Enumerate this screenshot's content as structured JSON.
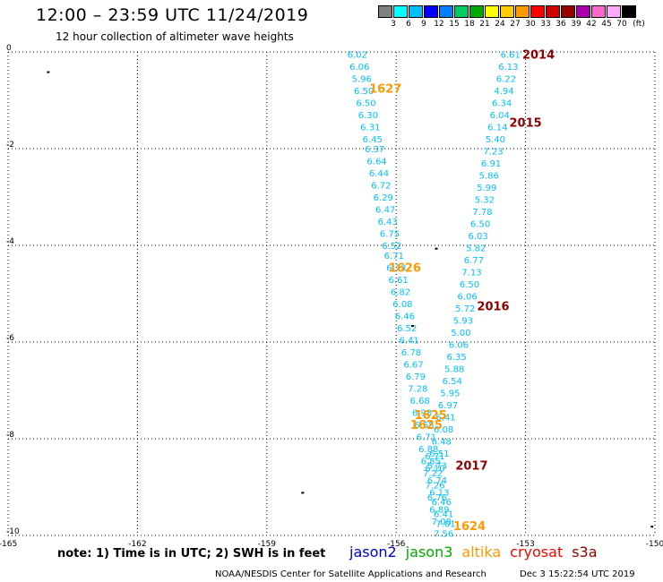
{
  "header": {
    "title": "12:00 – 23:59 UTC 11/24/2019",
    "subtitle": "12 hour collection of altimeter wave heights"
  },
  "legend": {
    "unit": "(ft)",
    "colors": [
      "#808080",
      "#00ffff",
      "#00bfff",
      "#0000ff",
      "#007fff",
      "#00cc66",
      "#00aa00",
      "#ffff00",
      "#ffcc00",
      "#ff9900",
      "#ff0000",
      "#cc0000",
      "#990000",
      "#aa00aa",
      "#ff66cc",
      "#ffaaff",
      "#000000"
    ],
    "labels": [
      "3",
      "6",
      "9",
      "12",
      "15",
      "18",
      "21",
      "24",
      "27",
      "30",
      "33",
      "36",
      "39",
      "42",
      "45",
      "70"
    ]
  },
  "chart_data": {
    "type": "scatter",
    "xlim": [
      -165,
      -150
    ],
    "ylim": [
      -10,
      0
    ],
    "x_ticks": [
      "-165",
      "-162",
      "-159",
      "-156",
      "-153",
      "-150"
    ],
    "y_ticks": [
      "0",
      "-2",
      "-4",
      "-6",
      "-8",
      "-10"
    ],
    "grid": true,
    "series": [
      {
        "color": "#00bfff",
        "values": [
          [
            -156.9,
            -0.05,
            "6.02"
          ],
          [
            -156.85,
            -0.3,
            "6.06"
          ],
          [
            -156.8,
            -0.55,
            "5.96"
          ],
          [
            -156.75,
            -0.8,
            "6.50"
          ],
          [
            -156.7,
            -1.05,
            "6.50"
          ],
          [
            -156.65,
            -1.3,
            "6.30"
          ],
          [
            -156.6,
            -1.55,
            "6.31"
          ],
          [
            -156.55,
            -1.8,
            "6.45"
          ],
          [
            -156.5,
            -2.0,
            "6.37"
          ],
          [
            -156.45,
            -2.25,
            "6.64"
          ],
          [
            -156.4,
            -2.5,
            "6.44"
          ],
          [
            -156.35,
            -2.75,
            "6.72"
          ],
          [
            -156.3,
            -3.0,
            "6.29"
          ],
          [
            -156.25,
            -3.25,
            "6.47"
          ],
          [
            -156.2,
            -3.5,
            "6.43"
          ],
          [
            -156.15,
            -3.75,
            "6.75"
          ],
          [
            -156.1,
            -4.0,
            "6.52"
          ],
          [
            -156.05,
            -4.2,
            "6.71"
          ],
          [
            -156.0,
            -4.45,
            "6.73"
          ],
          [
            -155.95,
            -4.7,
            "6.61"
          ],
          [
            -155.9,
            -4.95,
            "6.82"
          ],
          [
            -155.85,
            -5.2,
            "6.08"
          ],
          [
            -155.8,
            -5.45,
            "6.46"
          ],
          [
            -155.75,
            -5.7,
            "6.52"
          ],
          [
            -155.7,
            -5.95,
            "6.41"
          ],
          [
            -155.65,
            -6.2,
            "6.78"
          ],
          [
            -155.6,
            -6.45,
            "6.67"
          ],
          [
            -155.55,
            -6.7,
            "6.79"
          ],
          [
            -155.5,
            -6.95,
            "7.28"
          ],
          [
            -155.45,
            -7.2,
            "6.68"
          ],
          [
            -155.4,
            -7.45,
            "6.98"
          ],
          [
            -155.35,
            -7.7,
            "6.55"
          ],
          [
            -155.3,
            -7.95,
            "6.71"
          ],
          [
            -155.25,
            -8.2,
            "6.88"
          ],
          [
            -155.2,
            -8.45,
            "6.85"
          ],
          [
            -155.15,
            -8.7,
            "7.22"
          ],
          [
            -155.1,
            -8.95,
            "7.26"
          ],
          [
            -155.05,
            -9.2,
            "6.76"
          ],
          [
            -155.0,
            -9.45,
            "6.89"
          ],
          [
            -154.95,
            -9.7,
            "7.08"
          ],
          [
            -154.9,
            -9.95,
            "7.56"
          ],
          [
            -154.85,
            -9.75,
            "7.01"
          ],
          [
            -154.9,
            -9.55,
            "6.41"
          ],
          [
            -154.95,
            -9.3,
            "6.46"
          ],
          [
            -155.0,
            -9.1,
            "6.13"
          ],
          [
            -155.05,
            -8.85,
            "6.74"
          ],
          [
            -155.1,
            -8.6,
            "6.10"
          ],
          [
            -155.1,
            -8.35,
            "6.71"
          ]
        ]
      },
      {
        "color": "#00bfff",
        "values": [
          [
            -153.35,
            -0.05,
            "6.61"
          ],
          [
            -153.4,
            -0.3,
            "6.13"
          ],
          [
            -153.45,
            -0.55,
            "6.22"
          ],
          [
            -153.5,
            -0.8,
            "4.94"
          ],
          [
            -153.55,
            -1.05,
            "6.34"
          ],
          [
            -153.6,
            -1.3,
            "6.04"
          ],
          [
            -153.65,
            -1.55,
            "6.14"
          ],
          [
            -153.7,
            -1.8,
            "5.40"
          ],
          [
            -153.75,
            -2.05,
            "7.23"
          ],
          [
            -153.8,
            -2.3,
            "6.91"
          ],
          [
            -153.85,
            -2.55,
            "5.86"
          ],
          [
            -153.9,
            -2.8,
            "5.99"
          ],
          [
            -153.95,
            -3.05,
            "5.32"
          ],
          [
            -154.0,
            -3.3,
            "7.78"
          ],
          [
            -154.05,
            -3.55,
            "6.50"
          ],
          [
            -154.1,
            -3.8,
            "6.03"
          ],
          [
            -154.15,
            -4.05,
            "5.82"
          ],
          [
            -154.2,
            -4.3,
            "6.77"
          ],
          [
            -154.25,
            -4.55,
            "7.13"
          ],
          [
            -154.3,
            -4.8,
            "6.50"
          ],
          [
            -154.35,
            -5.05,
            "6.06"
          ],
          [
            -154.4,
            -5.3,
            "5.72"
          ],
          [
            -154.45,
            -5.55,
            "5.93"
          ],
          [
            -154.5,
            -5.8,
            "5.00"
          ],
          [
            -154.55,
            -6.05,
            "6.06"
          ],
          [
            -154.6,
            -6.3,
            "6.35"
          ],
          [
            -154.65,
            -6.55,
            "5.88"
          ],
          [
            -154.7,
            -6.8,
            "6.54"
          ],
          [
            -154.75,
            -7.05,
            "5.95"
          ],
          [
            -154.8,
            -7.3,
            "6.97"
          ],
          [
            -154.85,
            -7.55,
            "6.41"
          ],
          [
            -154.9,
            -7.8,
            "6.08"
          ],
          [
            -154.95,
            -8.05,
            "6.48"
          ],
          [
            -155.0,
            -8.3,
            "6.51"
          ],
          [
            -155.05,
            -8.55,
            "5.73"
          ]
        ]
      }
    ],
    "annotations": [
      {
        "text": "2014",
        "x": -152.7,
        "y": -0.05,
        "color": "#8b0000"
      },
      {
        "text": "2015",
        "x": -153.0,
        "y": -1.45,
        "color": "#8b0000"
      },
      {
        "text": "2016",
        "x": -153.75,
        "y": -5.25,
        "color": "#8b0000"
      },
      {
        "text": "2017",
        "x": -154.25,
        "y": -8.55,
        "color": "#8b0000"
      },
      {
        "text": "1627",
        "x": -156.25,
        "y": -0.75,
        "color": "#ff9900"
      },
      {
        "text": "1626",
        "x": -155.8,
        "y": -4.45,
        "color": "#ff9900"
      },
      {
        "text": "1625",
        "x": -155.2,
        "y": -7.5,
        "color": "#ff9900"
      },
      {
        "text": "1625",
        "x": -155.3,
        "y": -7.7,
        "color": "#ff9900"
      },
      {
        "text": "1624",
        "x": -154.3,
        "y": -9.8,
        "color": "#ff9900"
      }
    ]
  },
  "footer": {
    "note": "note:  1) Time is in UTC;  2) SWH is in feet",
    "satellites": [
      {
        "name": "jason2",
        "color": "#0000cc"
      },
      {
        "name": "jason3",
        "color": "#00aa00"
      },
      {
        "name": "altika",
        "color": "#ff9900"
      },
      {
        "name": "cryosat",
        "color": "#ff0000"
      },
      {
        "name": "s3a",
        "color": "#8b0000"
      }
    ],
    "credit": "NOAA/NESDIS Center for Satellite Applications and Research",
    "timestamp": "Dec  3 15:22:54 UTC 2019"
  }
}
